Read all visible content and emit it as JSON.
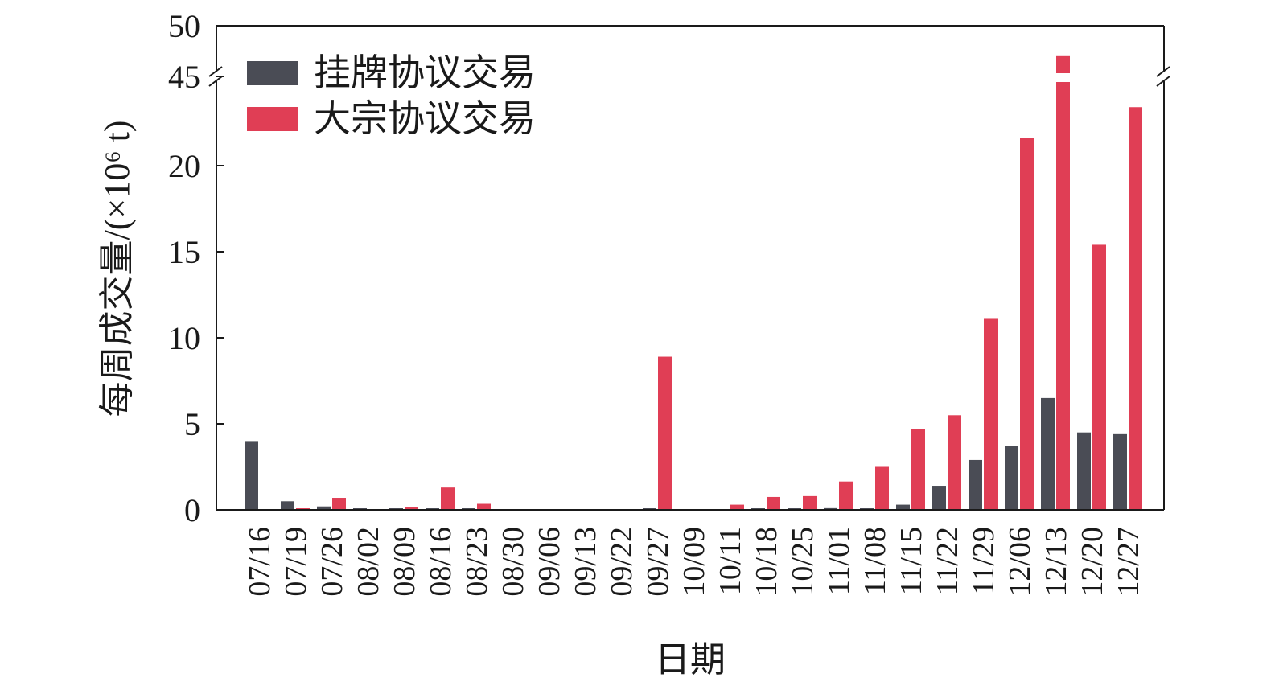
{
  "chart_data": {
    "type": "bar",
    "title": "",
    "xlabel": "日期",
    "ylabel": "每周成交量/(×10⁶ t)",
    "y_axis_break": {
      "lower_max": 24,
      "upper_min": 45,
      "upper_max": 50
    },
    "yticks_lower": [
      "0",
      "5",
      "10",
      "15",
      "20"
    ],
    "yticks_upper": [
      "45",
      "50"
    ],
    "yticks_lower_values": [
      0,
      5,
      10,
      15,
      20
    ],
    "yticks_upper_values": [
      45,
      50
    ],
    "legend_position": "top-left",
    "grid": false,
    "categories": [
      "07/16",
      "07/19",
      "07/26",
      "08/02",
      "08/09",
      "08/16",
      "08/23",
      "08/30",
      "09/06",
      "09/13",
      "09/22",
      "09/27",
      "10/09",
      "10/11",
      "10/18",
      "10/25",
      "11/01",
      "11/08",
      "11/15",
      "11/22",
      "11/29",
      "12/06",
      "12/13",
      "12/20",
      "12/27"
    ],
    "series": [
      {
        "name": "挂牌协议交易",
        "color": "#4a4c55",
        "values": [
          4.0,
          0.5,
          0.2,
          0.05,
          0.02,
          0.02,
          0.02,
          0.0,
          0.0,
          0.0,
          0.0,
          0.02,
          0.0,
          0.0,
          0.02,
          0.05,
          0.1,
          0.05,
          0.3,
          1.4,
          2.9,
          3.7,
          6.5,
          4.5,
          4.4
        ]
      },
      {
        "name": "大宗协议交易",
        "color": "#e03e55",
        "values": [
          0.0,
          0.05,
          0.7,
          0.0,
          0.15,
          1.3,
          0.35,
          0.0,
          0.0,
          0.0,
          0.0,
          8.9,
          0.0,
          0.3,
          0.75,
          0.8,
          1.65,
          2.5,
          4.7,
          5.5,
          11.1,
          21.6,
          47,
          15.4,
          23.4
        ]
      }
    ]
  }
}
